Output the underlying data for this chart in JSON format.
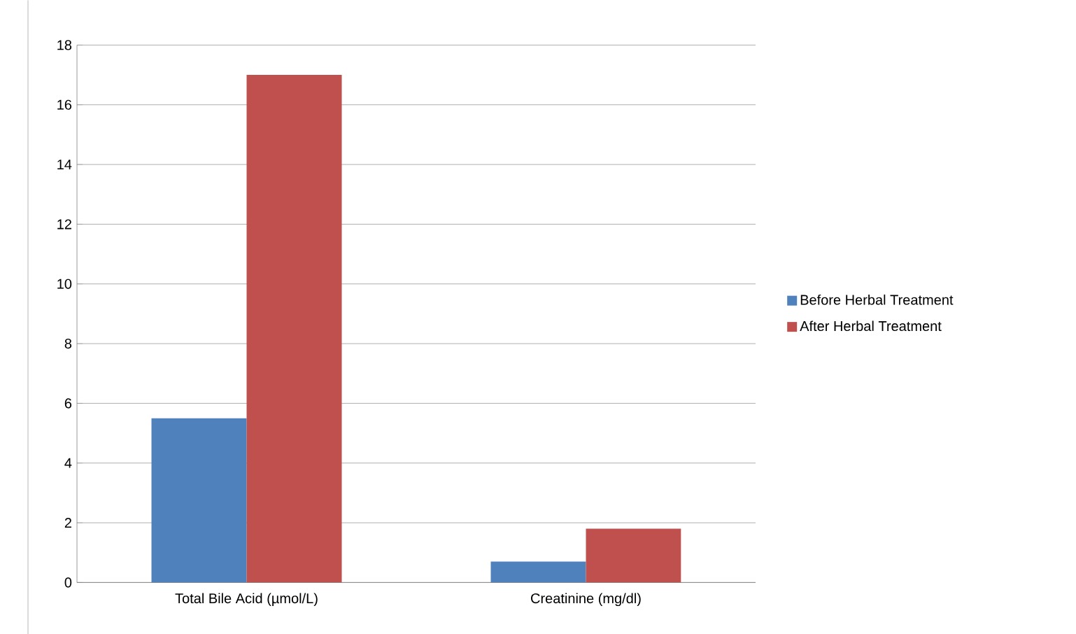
{
  "chart_data": {
    "type": "bar",
    "categories": [
      "Total Bile Acid (µmol/L)",
      "Creatinine (mg/dl)"
    ],
    "series": [
      {
        "name": "Before Herbal Treatment",
        "color": "#4f81bd",
        "values": [
          5.5,
          0.7
        ]
      },
      {
        "name": "After Herbal Treatment",
        "color": "#c0504d",
        "values": [
          17,
          1.8
        ]
      }
    ],
    "ylim": [
      0,
      18
    ],
    "yticks": [
      0,
      2,
      4,
      6,
      8,
      10,
      12,
      14,
      16,
      18
    ],
    "grid": "y",
    "legend": "right"
  }
}
